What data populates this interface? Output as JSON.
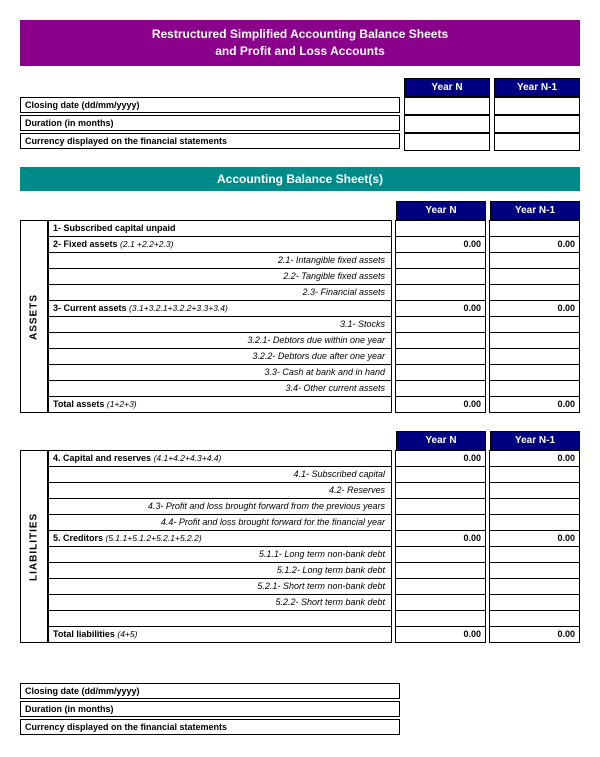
{
  "title": {
    "line1": "Restructured Simplified Accounting Balance Sheets",
    "line2": "and Profit and Loss Accounts"
  },
  "yearHeaders": {
    "n": "Year N",
    "n1": "Year N-1"
  },
  "meta": {
    "closing": "Closing date (dd/mm/yyyy)",
    "duration": "Duration (in months)",
    "currency": "Currency displayed on the financial statements"
  },
  "sectionBalance": "Accounting Balance Sheet(s)",
  "assets": {
    "label": "ASSETS",
    "rows": [
      {
        "type": "bold",
        "desc": "1- Subscribed capital unpaid",
        "n": "",
        "n1": ""
      },
      {
        "type": "bold",
        "desc": "2- Fixed assets",
        "sub": "(2.1 +2.2+2.3)",
        "n": "0.00",
        "n1": "0.00"
      },
      {
        "type": "italic",
        "desc": "2.1- Intangible fixed assets",
        "n": "",
        "n1": ""
      },
      {
        "type": "italic",
        "desc": "2.2- Tangible fixed assets",
        "n": "",
        "n1": ""
      },
      {
        "type": "italic",
        "desc": "2.3- Financial assets",
        "n": "",
        "n1": ""
      },
      {
        "type": "bold",
        "desc": "3- Current assets",
        "sub": "(3.1+3.2.1+3.2.2+3.3+3.4)",
        "n": "0.00",
        "n1": "0.00"
      },
      {
        "type": "italic",
        "desc": "3.1- Stocks",
        "n": "",
        "n1": ""
      },
      {
        "type": "italic",
        "desc": "3.2.1- Debtors due within one year",
        "n": "",
        "n1": ""
      },
      {
        "type": "italic",
        "desc": "3.2.2- Debtors due after one year",
        "n": "",
        "n1": ""
      },
      {
        "type": "italic",
        "desc": "3.3- Cash at bank and in hand",
        "n": "",
        "n1": ""
      },
      {
        "type": "italic",
        "desc": "3.4- Other current assets",
        "n": "",
        "n1": ""
      },
      {
        "type": "bold",
        "desc": "Total assets",
        "sub": "(1+2+3)",
        "n": "0.00",
        "n1": "0.00"
      }
    ]
  },
  "liabilities": {
    "label": "LIABILITIES",
    "rows": [
      {
        "type": "bold",
        "desc": "4. Capital and reserves",
        "sub": "(4.1+4.2+4.3+4.4)",
        "n": "0.00",
        "n1": "0.00"
      },
      {
        "type": "italic",
        "desc": "4.1- Subscribed capital",
        "n": "",
        "n1": ""
      },
      {
        "type": "italic",
        "desc": "4.2- Reserves",
        "n": "",
        "n1": ""
      },
      {
        "type": "italic",
        "desc": "4.3- Profit and loss brought forward from the previous years",
        "n": "",
        "n1": ""
      },
      {
        "type": "italic",
        "desc": "4.4- Profit and loss brought forward for the financial year",
        "n": "",
        "n1": ""
      },
      {
        "type": "bold",
        "desc": "5. Creditors",
        "sub": "(5.1.1+5.1.2+5.2.1+5.2.2)",
        "n": "0.00",
        "n1": "0.00"
      },
      {
        "type": "italic",
        "desc": "5.1.1- Long term non-bank debt",
        "n": "",
        "n1": ""
      },
      {
        "type": "italic",
        "desc": "5.1.2- Long term bank debt",
        "n": "",
        "n1": ""
      },
      {
        "type": "italic",
        "desc": "5.2.1- Short term non-bank debt",
        "n": "",
        "n1": ""
      },
      {
        "type": "italic",
        "desc": "5.2.2- Short term bank debt",
        "n": "",
        "n1": ""
      },
      {
        "type": "spacer",
        "desc": "",
        "n": "",
        "n1": ""
      },
      {
        "type": "bold",
        "desc": "Total liabilities",
        "sub": "(4+5)",
        "n": "0.00",
        "n1": "0.00"
      }
    ]
  }
}
